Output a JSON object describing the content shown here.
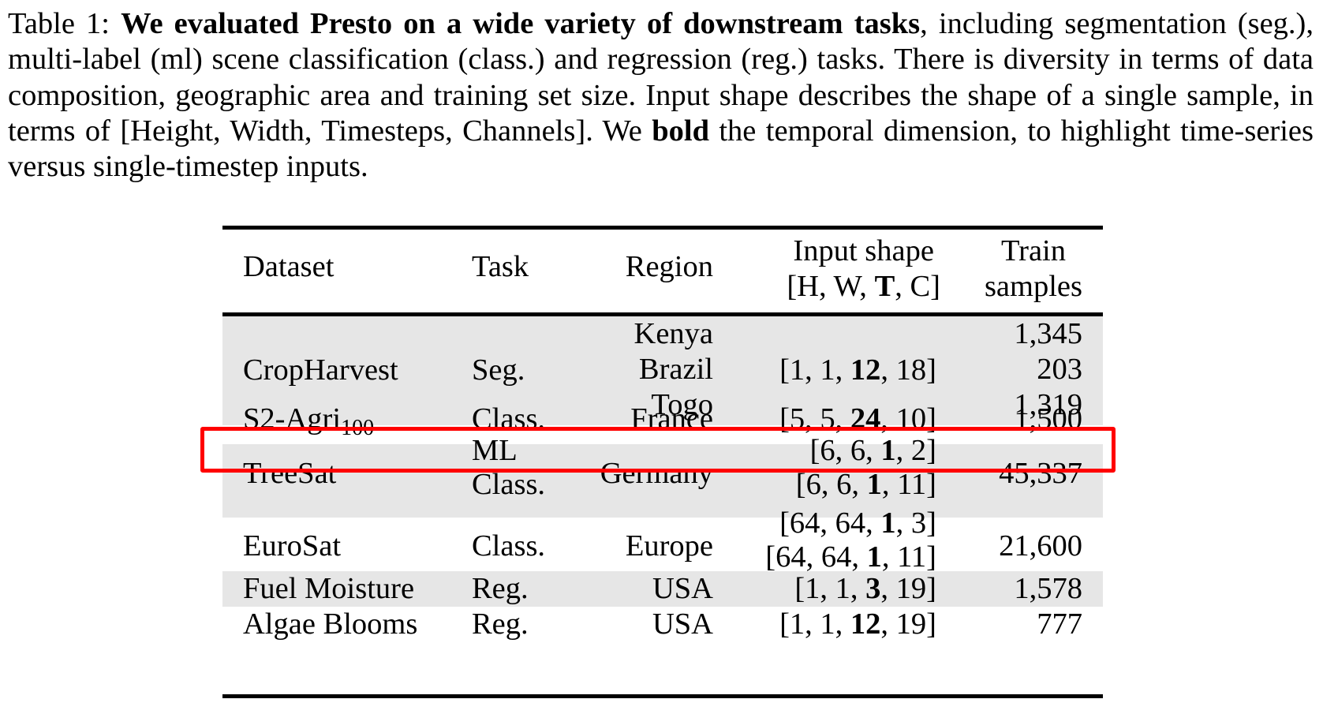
{
  "caption": {
    "label": "Table 1:",
    "bold_lead": "We evaluated Presto on a wide variety of downstream tasks",
    "text_1": ", including segmentation (seg.), multi-label (ml) scene classification (class.) and regression (reg.) tasks. There is diversity in terms of data composition, geographic area and training set size. Input shape describes the shape of a single sample, in terms of [Height, Width, Timesteps, Channels]. We ",
    "bold_word": "bold",
    "text_2": " the temporal dimension, to highlight time-series versus single-timestep inputs."
  },
  "table": {
    "headers": {
      "dataset": "Dataset",
      "task": "Task",
      "region": "Region",
      "input_shape_line1": "Input shape",
      "input_shape_line2_a": "[H, W, ",
      "input_shape_line2_bold": "T",
      "input_shape_line2_b": ", C]",
      "train_line1": "Train",
      "train_line2": "samples"
    },
    "rows": [
      {
        "dataset": "CropHarvest",
        "task": "Seg.",
        "regions": [
          "Kenya",
          "Brazil",
          "Togo"
        ],
        "shape": {
          "pre": "[1, 1, ",
          "t": "12",
          "post": ", 18]"
        },
        "train": [
          "1,345",
          "203",
          "1,319"
        ]
      },
      {
        "dataset": "S2-Agri",
        "dataset_sub": "100",
        "task": "Class.",
        "region": "France",
        "shape": {
          "pre": "[5, 5, ",
          "t": "24",
          "post": ", 10]"
        },
        "train": "1,500",
        "highlighted": true
      },
      {
        "dataset": "TreeSat",
        "task_lines": [
          "ML",
          "Class."
        ],
        "region": "Germany",
        "shapes": [
          {
            "pre": "[6, 6, ",
            "t": "1",
            "post": ", 2]"
          },
          {
            "pre": "[6, 6, ",
            "t": "1",
            "post": ", 11]"
          }
        ],
        "train": "45,337"
      },
      {
        "dataset": "EuroSat",
        "task": "Class.",
        "region": "Europe",
        "shapes": [
          {
            "pre": "[64, 64, ",
            "t": "1",
            "post": ", 3]"
          },
          {
            "pre": "[64, 64, ",
            "t": "1",
            "post": ", 11]"
          }
        ],
        "train": "21,600"
      },
      {
        "dataset": "Fuel Moisture",
        "task": "Reg.",
        "region": "USA",
        "shape": {
          "pre": "[1, 1, ",
          "t": "3",
          "post": ", 19]"
        },
        "train": "1,578"
      },
      {
        "dataset": "Algae Blooms",
        "task": "Reg.",
        "region": "USA",
        "shape": {
          "pre": "[1, 1, ",
          "t": "12",
          "post": ", 19]"
        },
        "train": "777"
      }
    ],
    "shade_color": "#e6e6e6",
    "highlight_color": "#ff0000"
  }
}
